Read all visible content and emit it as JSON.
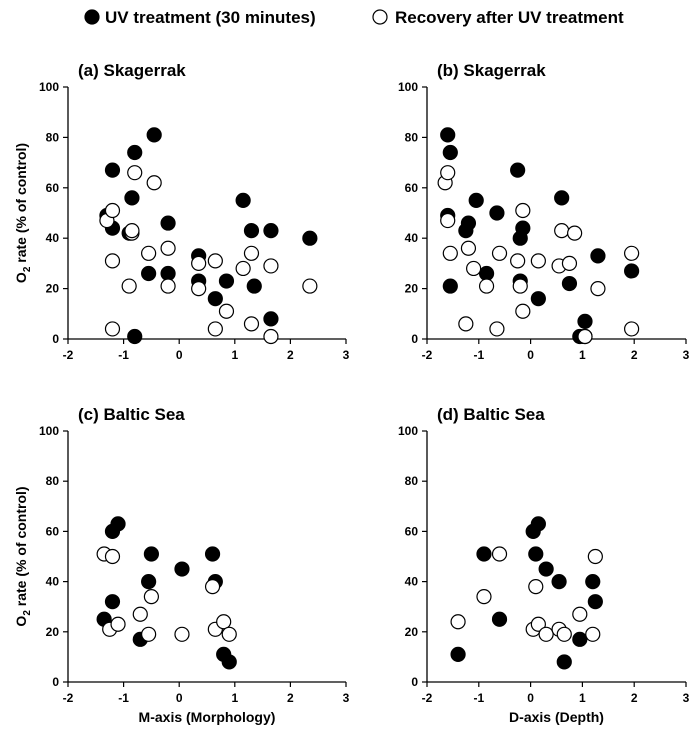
{
  "legend": {
    "filled_label": "UV treatment (30 minutes)",
    "open_label": "Recovery after UV treatment"
  },
  "colors": {
    "filled": "#000000",
    "open": "#ffffff",
    "stroke": "#000000"
  },
  "chart_data": [
    {
      "type": "scatter",
      "title": "(a) Skagerrak",
      "xlabel": "",
      "ylabel": "O2 rate (% of  control)",
      "ylabel_main": "O",
      "ylabel_sub": "2",
      "ylabel_rest": " rate (% of  control)",
      "xlim": [
        -2,
        3
      ],
      "ylim": [
        0,
        100
      ],
      "xticks": [
        "-2",
        "-1",
        "0",
        "1",
        "2",
        "3"
      ],
      "yticks": [
        "0",
        "20",
        "40",
        "60",
        "80",
        "100"
      ],
      "series": [
        {
          "name": "UV treatment (30 minutes)",
          "style": "filled",
          "points": [
            [
              -1.3,
              49
            ],
            [
              -1.2,
              67
            ],
            [
              -1.2,
              44
            ],
            [
              -0.9,
              42
            ],
            [
              -0.85,
              56
            ],
            [
              -0.8,
              74
            ],
            [
              -0.8,
              1
            ],
            [
              -0.55,
              26
            ],
            [
              -0.45,
              81
            ],
            [
              -0.2,
              46
            ],
            [
              -0.2,
              26
            ],
            [
              0.35,
              33
            ],
            [
              0.35,
              23
            ],
            [
              0.65,
              16
            ],
            [
              0.85,
              23
            ],
            [
              1.15,
              55
            ],
            [
              1.3,
              43
            ],
            [
              1.35,
              21
            ],
            [
              1.65,
              43
            ],
            [
              1.65,
              8
            ],
            [
              2.35,
              40
            ]
          ]
        },
        {
          "name": "Recovery after UV treatment",
          "style": "open",
          "points": [
            [
              -1.3,
              47
            ],
            [
              -1.2,
              51
            ],
            [
              -1.2,
              31
            ],
            [
              -1.2,
              4
            ],
            [
              -0.9,
              21
            ],
            [
              -0.85,
              42
            ],
            [
              -0.85,
              43
            ],
            [
              -0.8,
              66
            ],
            [
              -0.55,
              34
            ],
            [
              -0.45,
              62
            ],
            [
              -0.2,
              36
            ],
            [
              -0.2,
              21
            ],
            [
              0.35,
              30
            ],
            [
              0.35,
              20
            ],
            [
              0.65,
              31
            ],
            [
              0.65,
              4
            ],
            [
              0.85,
              11
            ],
            [
              1.15,
              28
            ],
            [
              1.3,
              34
            ],
            [
              1.3,
              6
            ],
            [
              1.65,
              29
            ],
            [
              1.65,
              1
            ],
            [
              2.35,
              21
            ]
          ]
        }
      ]
    },
    {
      "type": "scatter",
      "title": "(b) Skagerrak",
      "xlabel": "",
      "ylabel": "",
      "xlim": [
        -2,
        3
      ],
      "ylim": [
        0,
        100
      ],
      "xticks": [
        "-2",
        "-1",
        "0",
        "1",
        "2",
        "3"
      ],
      "yticks": [
        "0",
        "20",
        "40",
        "60",
        "80",
        "100"
      ],
      "series": [
        {
          "name": "UV treatment (30 minutes)",
          "style": "filled",
          "points": [
            [
              -1.6,
              81
            ],
            [
              -1.55,
              74
            ],
            [
              -1.6,
              49
            ],
            [
              -1.55,
              21
            ],
            [
              -1.25,
              43
            ],
            [
              -1.2,
              46
            ],
            [
              -1.05,
              55
            ],
            [
              -0.85,
              26
            ],
            [
              -0.65,
              50
            ],
            [
              -0.25,
              67
            ],
            [
              -0.2,
              40
            ],
            [
              -0.15,
              44
            ],
            [
              -0.2,
              23
            ],
            [
              0.15,
              16
            ],
            [
              0.6,
              56
            ],
            [
              0.75,
              22
            ],
            [
              0.95,
              1
            ],
            [
              1.05,
              7
            ],
            [
              1.05,
              1
            ],
            [
              1.3,
              33
            ],
            [
              1.95,
              27
            ]
          ]
        },
        {
          "name": "Recovery after UV treatment",
          "style": "open",
          "points": [
            [
              -1.65,
              62
            ],
            [
              -1.6,
              66
            ],
            [
              -1.6,
              47
            ],
            [
              -1.55,
              34
            ],
            [
              -1.25,
              6
            ],
            [
              -1.2,
              36
            ],
            [
              -1.1,
              28
            ],
            [
              -0.85,
              21
            ],
            [
              -0.65,
              4
            ],
            [
              -0.6,
              34
            ],
            [
              -0.25,
              31
            ],
            [
              -0.2,
              21
            ],
            [
              -0.15,
              11
            ],
            [
              -0.15,
              51
            ],
            [
              0.15,
              31
            ],
            [
              0.55,
              29
            ],
            [
              0.6,
              43
            ],
            [
              0.75,
              30
            ],
            [
              0.85,
              42
            ],
            [
              1.05,
              1
            ],
            [
              1.3,
              20
            ],
            [
              1.95,
              34
            ],
            [
              1.95,
              4
            ]
          ]
        }
      ]
    },
    {
      "type": "scatter",
      "title": "(c) Baltic Sea",
      "xlabel": "M-axis (Morphology)",
      "ylabel": "O2 rate (% of control)",
      "ylabel_main": "O",
      "ylabel_sub": "2",
      "ylabel_rest": " rate (% of control)",
      "xlim": [
        -2,
        3
      ],
      "ylim": [
        0,
        100
      ],
      "xticks": [
        "-2",
        "-1",
        "0",
        "1",
        "2",
        "3"
      ],
      "yticks": [
        "0",
        "20",
        "40",
        "60",
        "80",
        "100"
      ],
      "series": [
        {
          "name": "UV treatment (30 minutes)",
          "style": "filled",
          "points": [
            [
              -1.35,
              25
            ],
            [
              -1.2,
              32
            ],
            [
              -1.2,
              60
            ],
            [
              -1.1,
              63
            ],
            [
              -0.7,
              17
            ],
            [
              -0.55,
              40
            ],
            [
              -0.5,
              51
            ],
            [
              0.05,
              45
            ],
            [
              0.6,
              51
            ],
            [
              0.65,
              40
            ],
            [
              0.8,
              11
            ],
            [
              0.9,
              8
            ]
          ]
        },
        {
          "name": "Recovery after UV treatment",
          "style": "open",
          "points": [
            [
              -1.35,
              51
            ],
            [
              -1.25,
              21
            ],
            [
              -1.2,
              50
            ],
            [
              -1.1,
              23
            ],
            [
              -0.7,
              27
            ],
            [
              -0.55,
              19
            ],
            [
              -0.5,
              34
            ],
            [
              0.05,
              19
            ],
            [
              0.6,
              38
            ],
            [
              0.65,
              21
            ],
            [
              0.8,
              24
            ],
            [
              0.9,
              19
            ]
          ]
        }
      ]
    },
    {
      "type": "scatter",
      "title": "(d) Baltic Sea",
      "xlabel": "D-axis (Depth)",
      "ylabel": "",
      "xlim": [
        -2,
        3
      ],
      "ylim": [
        0,
        100
      ],
      "xticks": [
        "-2",
        "-1",
        "0",
        "1",
        "2",
        "3"
      ],
      "yticks": [
        "0",
        "20",
        "40",
        "60",
        "80",
        "100"
      ],
      "series": [
        {
          "name": "UV treatment (30 minutes)",
          "style": "filled",
          "points": [
            [
              -1.4,
              11
            ],
            [
              -0.9,
              51
            ],
            [
              -0.6,
              25
            ],
            [
              0.05,
              60
            ],
            [
              0.1,
              51
            ],
            [
              0.15,
              63
            ],
            [
              0.3,
              45
            ],
            [
              0.55,
              40
            ],
            [
              0.65,
              8
            ],
            [
              0.95,
              17
            ],
            [
              1.2,
              40
            ],
            [
              1.25,
              32
            ]
          ]
        },
        {
          "name": "Recovery after UV treatment",
          "style": "open",
          "points": [
            [
              -1.4,
              24
            ],
            [
              -0.9,
              34
            ],
            [
              -0.6,
              51
            ],
            [
              0.05,
              21
            ],
            [
              0.1,
              38
            ],
            [
              0.15,
              23
            ],
            [
              0.3,
              19
            ],
            [
              0.55,
              21
            ],
            [
              0.65,
              19
            ],
            [
              0.95,
              27
            ],
            [
              1.2,
              19
            ],
            [
              1.25,
              50
            ]
          ]
        }
      ]
    }
  ]
}
